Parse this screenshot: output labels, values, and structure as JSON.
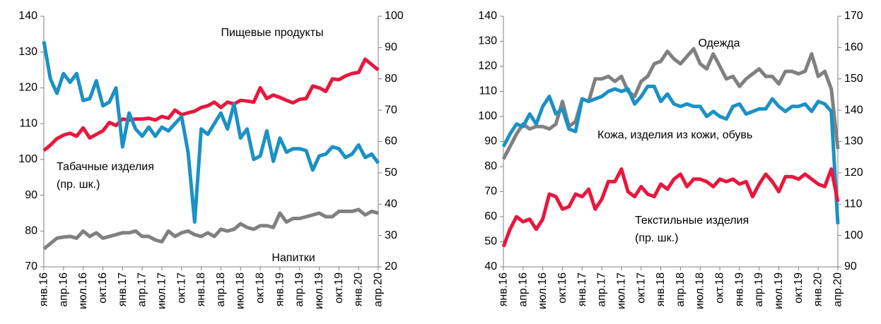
{
  "chart_data": [
    {
      "type": "line",
      "categories": [
        "янв.16",
        null,
        null,
        "апр.16",
        null,
        null,
        "июл.16",
        null,
        null,
        "окт.16",
        null,
        null,
        "янв.17",
        null,
        null,
        "апр.17",
        null,
        null,
        "июл.17",
        null,
        null,
        "окт.17",
        null,
        null,
        "янв.18",
        null,
        null,
        "апр.18",
        null,
        null,
        "июл.18",
        null,
        null,
        "окт.18",
        null,
        null,
        "янв.19",
        null,
        null,
        "апр.19",
        null,
        null,
        "июл.19",
        null,
        null,
        "окт.19",
        null,
        null,
        "янв.20",
        null,
        null,
        "апр.20"
      ],
      "ylim": [
        70,
        140
      ],
      "yticks": [
        70,
        80,
        90,
        100,
        110,
        120,
        130,
        140
      ],
      "y2lim": [
        20,
        100
      ],
      "y2ticks": [
        20,
        30,
        40,
        50,
        60,
        70,
        80,
        90,
        100
      ],
      "annotations": [
        "Пищевые продукты",
        "Табачные изделия",
        "(пр. шк.)",
        "Напитки"
      ],
      "series": [
        {
          "name": "Пищевые продукты",
          "color": "#e8173d",
          "values": [
            102.5,
            104,
            105.8,
            106.8,
            107.3,
            106.5,
            108.8,
            106,
            107,
            108,
            110.3,
            109.5,
            111.3,
            111,
            111.3,
            111.3,
            111.5,
            111,
            112,
            111.5,
            113.8,
            112.5,
            113,
            113.5,
            114.5,
            115,
            116,
            114.5,
            116,
            115.5,
            116.5,
            116.3,
            116,
            120,
            117,
            118,
            117.3,
            116.5,
            115.8,
            116.8,
            117,
            120.5,
            120,
            119,
            122.5,
            122.3,
            123.3,
            124,
            124.3,
            128,
            126.5,
            125
          ]
        },
        {
          "name": "Табачные изделия",
          "color": "#1b91c4",
          "axis": "y2",
          "values": [
            92,
            80,
            75.4,
            81.7,
            78.9,
            81.7,
            73.1,
            73.7,
            79.4,
            71.4,
            72.6,
            77.1,
            58.3,
            69.1,
            64,
            61.7,
            64.6,
            61.7,
            64.6,
            63.4,
            65.7,
            68,
            56.6,
            34.3,
            64,
            62.3,
            65.7,
            69.1,
            64,
            72,
            61.1,
            64,
            54.3,
            55.4,
            63.4,
            53.7,
            61.1,
            56.6,
            57.7,
            57.7,
            57.1,
            50.9,
            55.4,
            56,
            58.3,
            57.7,
            54.9,
            56,
            58.9,
            54.9,
            56,
            53.1
          ]
        },
        {
          "name": "Напитки",
          "color": "#808080",
          "values": [
            75,
            76.5,
            78,
            78.3,
            78.5,
            78,
            80,
            78.5,
            79.5,
            78,
            78.5,
            79,
            79.5,
            79.5,
            80,
            78.5,
            78.5,
            77.5,
            77,
            80,
            78.5,
            79.5,
            80,
            79,
            78.5,
            79.5,
            78.5,
            80.5,
            80,
            80.5,
            82,
            81,
            80.5,
            81.5,
            81.5,
            81,
            85,
            82.5,
            83.5,
            83.5,
            84,
            84.5,
            85,
            84,
            84,
            85.5,
            85.5,
            85.5,
            86,
            84.5,
            85.5,
            85
          ]
        }
      ]
    },
    {
      "type": "line",
      "categories": [
        "янв.16",
        null,
        null,
        "апр.16",
        null,
        null,
        "июл.16",
        null,
        null,
        "окт.16",
        null,
        null,
        "янв.17",
        null,
        null,
        "апр.17",
        null,
        null,
        "июл.17",
        null,
        null,
        "окт.17",
        null,
        null,
        "янв.18",
        null,
        null,
        "апр.18",
        null,
        null,
        "июл.18",
        null,
        null,
        "окт.18",
        null,
        null,
        "янв.19",
        null,
        null,
        "апр.19",
        null,
        null,
        "июл.19",
        null,
        null,
        "окт.19",
        null,
        null,
        "янв.20",
        null,
        null,
        "апр.20"
      ],
      "ylim": [
        40,
        140
      ],
      "yticks": [
        40,
        50,
        60,
        70,
        80,
        90,
        100,
        110,
        120,
        130,
        140
      ],
      "y2lim": [
        90,
        170
      ],
      "y2ticks": [
        90,
        100,
        110,
        120,
        130,
        140,
        150,
        160,
        170
      ],
      "annotations": [
        "Одежда",
        "Кожа, изделия из кожи,  обувь",
        "Текстильные изделия",
        "(пр. шк.)"
      ],
      "series": [
        {
          "name": "Одежда",
          "color": "#808080",
          "values": [
            83,
            88,
            93,
            97,
            95,
            96,
            96,
            95,
            97,
            106,
            96,
            98,
            107,
            106,
            115,
            115,
            116,
            114,
            116,
            110,
            108,
            114,
            116,
            121,
            122,
            126,
            123,
            121,
            124,
            127,
            121,
            119,
            125,
            120,
            115,
            116,
            112,
            115,
            117,
            119,
            116,
            116,
            113,
            118,
            118,
            117,
            118,
            125,
            116,
            118,
            111,
            87
          ]
        },
        {
          "name": "Кожа, изделия из кожи, обувь",
          "color": "#1b91c4",
          "values": [
            88,
            93,
            97,
            96,
            101,
            97,
            104,
            108,
            101,
            103,
            95,
            94,
            107,
            106,
            107,
            108,
            110,
            111,
            110,
            111,
            105,
            108,
            112,
            112,
            106,
            109,
            105,
            104,
            105,
            104,
            104,
            100,
            102,
            100,
            99,
            104,
            105,
            101,
            102,
            103,
            103,
            107,
            104,
            102,
            104,
            104,
            105,
            102,
            106,
            105,
            102,
            57
          ]
        },
        {
          "name": "Текстильные изделия",
          "color": "#e8173d",
          "axis": "y2",
          "values": [
            96.4,
            102,
            106,
            104.4,
            105.2,
            102,
            105.2,
            113.2,
            112.4,
            108.4,
            109.2,
            113.2,
            112.4,
            114.8,
            108.4,
            111.6,
            117.2,
            117.2,
            121.2,
            114,
            112.4,
            115.6,
            113.2,
            112.4,
            116.4,
            114.8,
            118,
            119.6,
            115.6,
            118,
            118,
            117.2,
            115.6,
            118,
            117.2,
            118,
            116.4,
            117.2,
            112.4,
            116.4,
            119.6,
            117.2,
            114,
            118.8,
            118.8,
            118,
            119.6,
            118,
            116.4,
            115.6,
            121.2,
            110.8
          ]
        }
      ]
    }
  ]
}
